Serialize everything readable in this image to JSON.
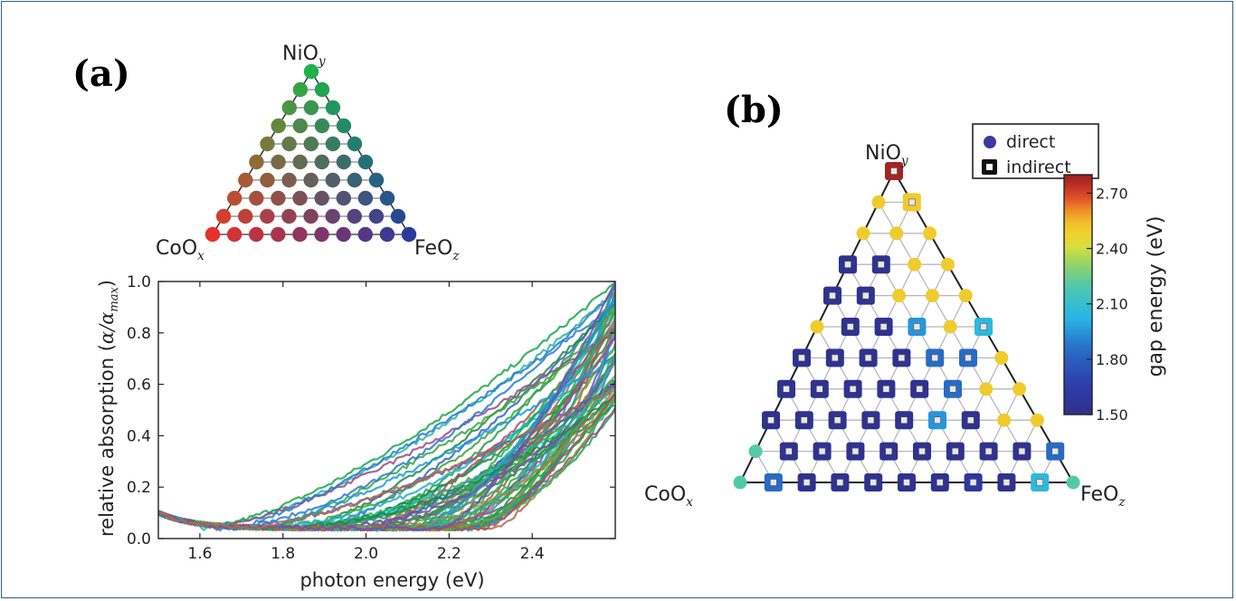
{
  "panel_a": {
    "label": "(a)",
    "ternary": {
      "top_label": "NiO",
      "top_sub": "y",
      "left_label": "CoO",
      "left_sub": "x",
      "right_label": "FeO",
      "right_sub": "z",
      "rows": 10,
      "colors": {
        "top": "#1fb24a",
        "left": "#e8312a",
        "right": "#2a3a9e"
      }
    },
    "plot": {
      "xlabel": "photon energy (eV)",
      "ylabel_prefix": "relative absorption (",
      "ylabel_math": "α/α",
      "ylabel_sub": "max",
      "ylabel_suffix": ")"
    }
  },
  "panel_b": {
    "label": "(b)",
    "legend": {
      "direct": "direct",
      "indirect": "indirect"
    },
    "colorbar": {
      "label": "gap energy (eV)",
      "ticks": [
        "2.70",
        "2.40",
        "2.10",
        "1.80",
        "1.50"
      ],
      "range": [
        1.5,
        2.8
      ]
    },
    "ternary": {
      "top_label": "NiO",
      "top_sub": "y",
      "left_label": "CoO",
      "left_sub": "x",
      "right_label": "FeO",
      "right_sub": "z",
      "rows": 11
    }
  },
  "chart_data": [
    {
      "type": "scatter",
      "title": "",
      "description_text": "",
      "series": [
        {
          "values": [
            1
          ]
        }
      ]
    },
    {
      "type": "line",
      "xlabel": "photon energy (eV)",
      "ylabel": "relative absorption (α/α_max)",
      "xlim": [
        1.5,
        2.6
      ],
      "ylim": [
        0.0,
        1.0
      ],
      "x_ticks": [
        "1.6",
        "1.8",
        "2.0",
        "2.2",
        "2.4"
      ],
      "y_ticks": [
        "0.0",
        "0.2",
        "0.4",
        "0.6",
        "0.8",
        "1.0"
      ],
      "onset_range": [
        1.6,
        2.3
      ],
      "curve_count": 66
    },
    {
      "type": "scatter",
      "xlabel": "",
      "ylabel": "",
      "colorbar_label": "gap energy (eV)",
      "colorbar_range": [
        1.5,
        2.8
      ],
      "points": [
        {
          "r": 0,
          "c": 0,
          "t": "i",
          "g": 2.78
        },
        {
          "r": 1,
          "c": 0,
          "t": "d",
          "g": 2.5
        },
        {
          "r": 1,
          "c": 1,
          "t": "i",
          "g": 2.5
        },
        {
          "r": 2,
          "c": 0,
          "t": "d",
          "g": 2.5
        },
        {
          "r": 2,
          "c": 1,
          "t": "d",
          "g": 2.5
        },
        {
          "r": 2,
          "c": 2,
          "t": "d",
          "g": 2.5
        },
        {
          "r": 3,
          "c": 0,
          "t": "i",
          "g": 1.52
        },
        {
          "r": 3,
          "c": 1,
          "t": "i",
          "g": 1.52
        },
        {
          "r": 3,
          "c": 2,
          "t": "d",
          "g": 2.5
        },
        {
          "r": 3,
          "c": 3,
          "t": "d",
          "g": 2.5
        },
        {
          "r": 4,
          "c": 0,
          "t": "i",
          "g": 1.52
        },
        {
          "r": 4,
          "c": 1,
          "t": "i",
          "g": 1.52
        },
        {
          "r": 4,
          "c": 2,
          "t": "d",
          "g": 2.5
        },
        {
          "r": 4,
          "c": 3,
          "t": "d",
          "g": 2.5
        },
        {
          "r": 4,
          "c": 4,
          "t": "d",
          "g": 2.5
        },
        {
          "r": 5,
          "c": 0,
          "t": "d",
          "g": 2.5
        },
        {
          "r": 5,
          "c": 1,
          "t": "i",
          "g": 1.52
        },
        {
          "r": 5,
          "c": 2,
          "t": "i",
          "g": 1.52
        },
        {
          "r": 5,
          "c": 3,
          "t": "i",
          "g": 1.95
        },
        {
          "r": 5,
          "c": 4,
          "t": "d",
          "g": 2.5
        },
        {
          "r": 5,
          "c": 5,
          "t": "i",
          "g": 2.05
        },
        {
          "r": 6,
          "c": 0,
          "t": "i",
          "g": 1.52
        },
        {
          "r": 6,
          "c": 1,
          "t": "i",
          "g": 1.52
        },
        {
          "r": 6,
          "c": 2,
          "t": "i",
          "g": 1.52
        },
        {
          "r": 6,
          "c": 3,
          "t": "i",
          "g": 1.52
        },
        {
          "r": 6,
          "c": 4,
          "t": "i",
          "g": 1.85
        },
        {
          "r": 6,
          "c": 5,
          "t": "i",
          "g": 1.85
        },
        {
          "r": 6,
          "c": 6,
          "t": "d",
          "g": 2.5
        },
        {
          "r": 7,
          "c": 0,
          "t": "i",
          "g": 1.52
        },
        {
          "r": 7,
          "c": 1,
          "t": "i",
          "g": 1.52
        },
        {
          "r": 7,
          "c": 2,
          "t": "i",
          "g": 1.52
        },
        {
          "r": 7,
          "c": 3,
          "t": "i",
          "g": 1.52
        },
        {
          "r": 7,
          "c": 4,
          "t": "i",
          "g": 1.52
        },
        {
          "r": 7,
          "c": 5,
          "t": "i",
          "g": 1.85
        },
        {
          "r": 7,
          "c": 6,
          "t": "d",
          "g": 2.5
        },
        {
          "r": 7,
          "c": 7,
          "t": "d",
          "g": 2.5
        },
        {
          "r": 8,
          "c": 0,
          "t": "i",
          "g": 1.52
        },
        {
          "r": 8,
          "c": 1,
          "t": "i",
          "g": 1.52
        },
        {
          "r": 8,
          "c": 2,
          "t": "i",
          "g": 1.52
        },
        {
          "r": 8,
          "c": 3,
          "t": "i",
          "g": 1.52
        },
        {
          "r": 8,
          "c": 4,
          "t": "i",
          "g": 1.52
        },
        {
          "r": 8,
          "c": 5,
          "t": "i",
          "g": 1.95
        },
        {
          "r": 8,
          "c": 6,
          "t": "i",
          "g": 1.52
        },
        {
          "r": 8,
          "c": 7,
          "t": "d",
          "g": 2.5
        },
        {
          "r": 8,
          "c": 8,
          "t": "d",
          "g": 2.5
        },
        {
          "r": 9,
          "c": 0,
          "t": "d",
          "g": 2.2
        },
        {
          "r": 9,
          "c": 1,
          "t": "i",
          "g": 1.52
        },
        {
          "r": 9,
          "c": 2,
          "t": "i",
          "g": 1.52
        },
        {
          "r": 9,
          "c": 3,
          "t": "i",
          "g": 1.52
        },
        {
          "r": 9,
          "c": 4,
          "t": "i",
          "g": 1.52
        },
        {
          "r": 9,
          "c": 5,
          "t": "i",
          "g": 1.52
        },
        {
          "r": 9,
          "c": 6,
          "t": "i",
          "g": 1.52
        },
        {
          "r": 9,
          "c": 7,
          "t": "i",
          "g": 1.52
        },
        {
          "r": 9,
          "c": 8,
          "t": "i",
          "g": 1.52
        },
        {
          "r": 9,
          "c": 9,
          "t": "i",
          "g": 1.85
        },
        {
          "r": 10,
          "c": 0,
          "t": "d",
          "g": 2.2
        },
        {
          "r": 10,
          "c": 1,
          "t": "i",
          "g": 1.85
        },
        {
          "r": 10,
          "c": 2,
          "t": "i",
          "g": 1.52
        },
        {
          "r": 10,
          "c": 3,
          "t": "i",
          "g": 1.52
        },
        {
          "r": 10,
          "c": 4,
          "t": "i",
          "g": 1.52
        },
        {
          "r": 10,
          "c": 5,
          "t": "i",
          "g": 1.52
        },
        {
          "r": 10,
          "c": 6,
          "t": "i",
          "g": 1.52
        },
        {
          "r": 10,
          "c": 7,
          "t": "i",
          "g": 1.6
        },
        {
          "r": 10,
          "c": 8,
          "t": "i",
          "g": 1.52
        },
        {
          "r": 10,
          "c": 9,
          "t": "i",
          "g": 2.05
        },
        {
          "r": 10,
          "c": 10,
          "t": "d",
          "g": 2.2
        }
      ]
    }
  ]
}
